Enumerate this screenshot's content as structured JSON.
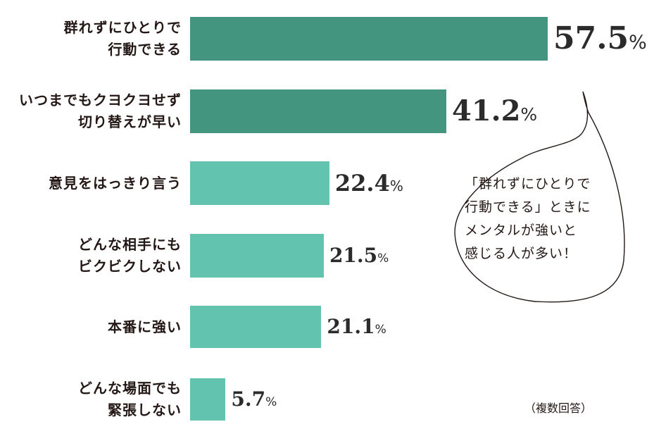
{
  "chart_data": {
    "type": "bar",
    "orientation": "horizontal",
    "categories": [
      [
        "群れずにひとりで",
        "行動できる"
      ],
      [
        "いつまでもクヨクヨせず",
        "切り替えが早い"
      ],
      [
        "意見をはっきり言う"
      ],
      [
        "どんな相手にも",
        "ビクビクしない"
      ],
      [
        "本番に強い"
      ],
      [
        "どんな場面でも",
        "緊張しない"
      ]
    ],
    "values": [
      57.5,
      41.2,
      22.4,
      21.5,
      21.1,
      5.7
    ],
    "value_labels": [
      "57.5",
      "41.2",
      "22.4",
      "21.5",
      "21.1",
      "5.7"
    ],
    "unit": "%",
    "highlight_count": 2,
    "colors": {
      "highlight": "#449580",
      "normal": "#62c4ae"
    },
    "xlim": [
      0,
      65
    ],
    "grid": false,
    "legend": "none"
  },
  "annotation": {
    "lines": [
      "「群れずにひとりで",
      "行動できる」ときに",
      "メンタルが強いと",
      "感じる人が多い！"
    ]
  },
  "footnote": "（複数回答）"
}
